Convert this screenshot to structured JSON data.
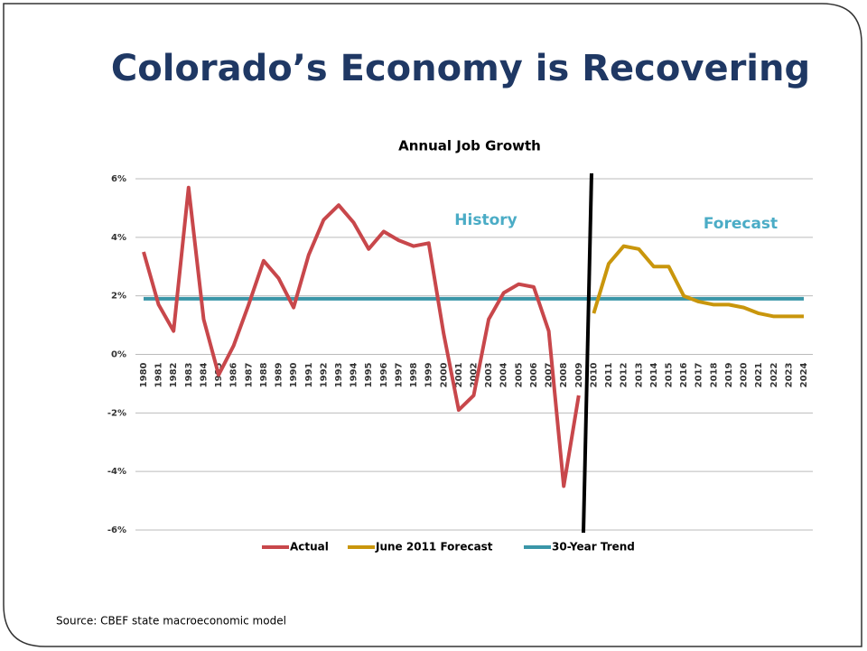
{
  "header": {
    "title": "Colorado’s Economy is Recovering"
  },
  "chart_data": {
    "type": "line",
    "title": "Annual Job Growth",
    "categories": [
      "1980",
      "1981",
      "1982",
      "1983",
      "1984",
      "1985",
      "1986",
      "1987",
      "1988",
      "1989",
      "1990",
      "1991",
      "1992",
      "1993",
      "1994",
      "1995",
      "1996",
      "1997",
      "1998",
      "1999",
      "2000",
      "2001",
      "2002",
      "2003",
      "2004",
      "2005",
      "2006",
      "2007",
      "2008",
      "2009",
      "2010",
      "2011",
      "2012",
      "2013",
      "2014",
      "2015",
      "2016",
      "2017",
      "2018",
      "2019",
      "2020",
      "2021",
      "2022",
      "2023",
      "2024"
    ],
    "series": [
      {
        "name": "Actual",
        "color": "#c8474b",
        "values": [
          3.5,
          1.7,
          0.8,
          5.7,
          1.2,
          -0.7,
          0.3,
          1.7,
          3.2,
          2.6,
          1.6,
          3.4,
          4.6,
          5.1,
          4.5,
          3.6,
          4.2,
          3.9,
          3.7,
          3.8,
          0.7,
          -1.9,
          -1.4,
          1.2,
          2.1,
          2.4,
          2.3,
          0.8,
          -4.5,
          -1.4,
          null,
          null,
          null,
          null,
          null,
          null,
          null,
          null,
          null,
          null,
          null,
          null,
          null,
          null,
          null
        ]
      },
      {
        "name": "June 2011 Forecast",
        "color": "#c9960c",
        "values": [
          null,
          null,
          null,
          null,
          null,
          null,
          null,
          null,
          null,
          null,
          null,
          null,
          null,
          null,
          null,
          null,
          null,
          null,
          null,
          null,
          null,
          null,
          null,
          null,
          null,
          null,
          null,
          null,
          null,
          null,
          1.4,
          3.1,
          3.7,
          3.6,
          3.0,
          3.0,
          2.0,
          1.8,
          1.7,
          1.7,
          1.6,
          1.4,
          1.3,
          1.3,
          1.3
        ]
      },
      {
        "name": "30-Year Trend",
        "color": "#3a96a8",
        "values": [
          1.9,
          1.9,
          1.9,
          1.9,
          1.9,
          1.9,
          1.9,
          1.9,
          1.9,
          1.9,
          1.9,
          1.9,
          1.9,
          1.9,
          1.9,
          1.9,
          1.9,
          1.9,
          1.9,
          1.9,
          1.9,
          1.9,
          1.9,
          1.9,
          1.9,
          1.9,
          1.9,
          1.9,
          1.9,
          1.9,
          1.9,
          1.9,
          1.9,
          1.9,
          1.9,
          1.9,
          1.9,
          1.9,
          1.9,
          1.9,
          1.9,
          1.9,
          1.9,
          1.9,
          1.9
        ]
      }
    ],
    "ylim": [
      -6,
      6
    ],
    "yticks": [
      {
        "value": -6,
        "label": "-6%"
      },
      {
        "value": -4,
        "label": "-4%"
      },
      {
        "value": -2,
        "label": "-2%"
      },
      {
        "value": 0,
        "label": "0%"
      },
      {
        "value": 2,
        "label": "2%"
      },
      {
        "value": 4,
        "label": "4%"
      },
      {
        "value": 6,
        "label": "6%"
      }
    ],
    "grid": true,
    "annotations": [
      "History",
      "Forecast"
    ],
    "legend": "bottom"
  },
  "source": "Source: CBEF state macroeconomic model"
}
